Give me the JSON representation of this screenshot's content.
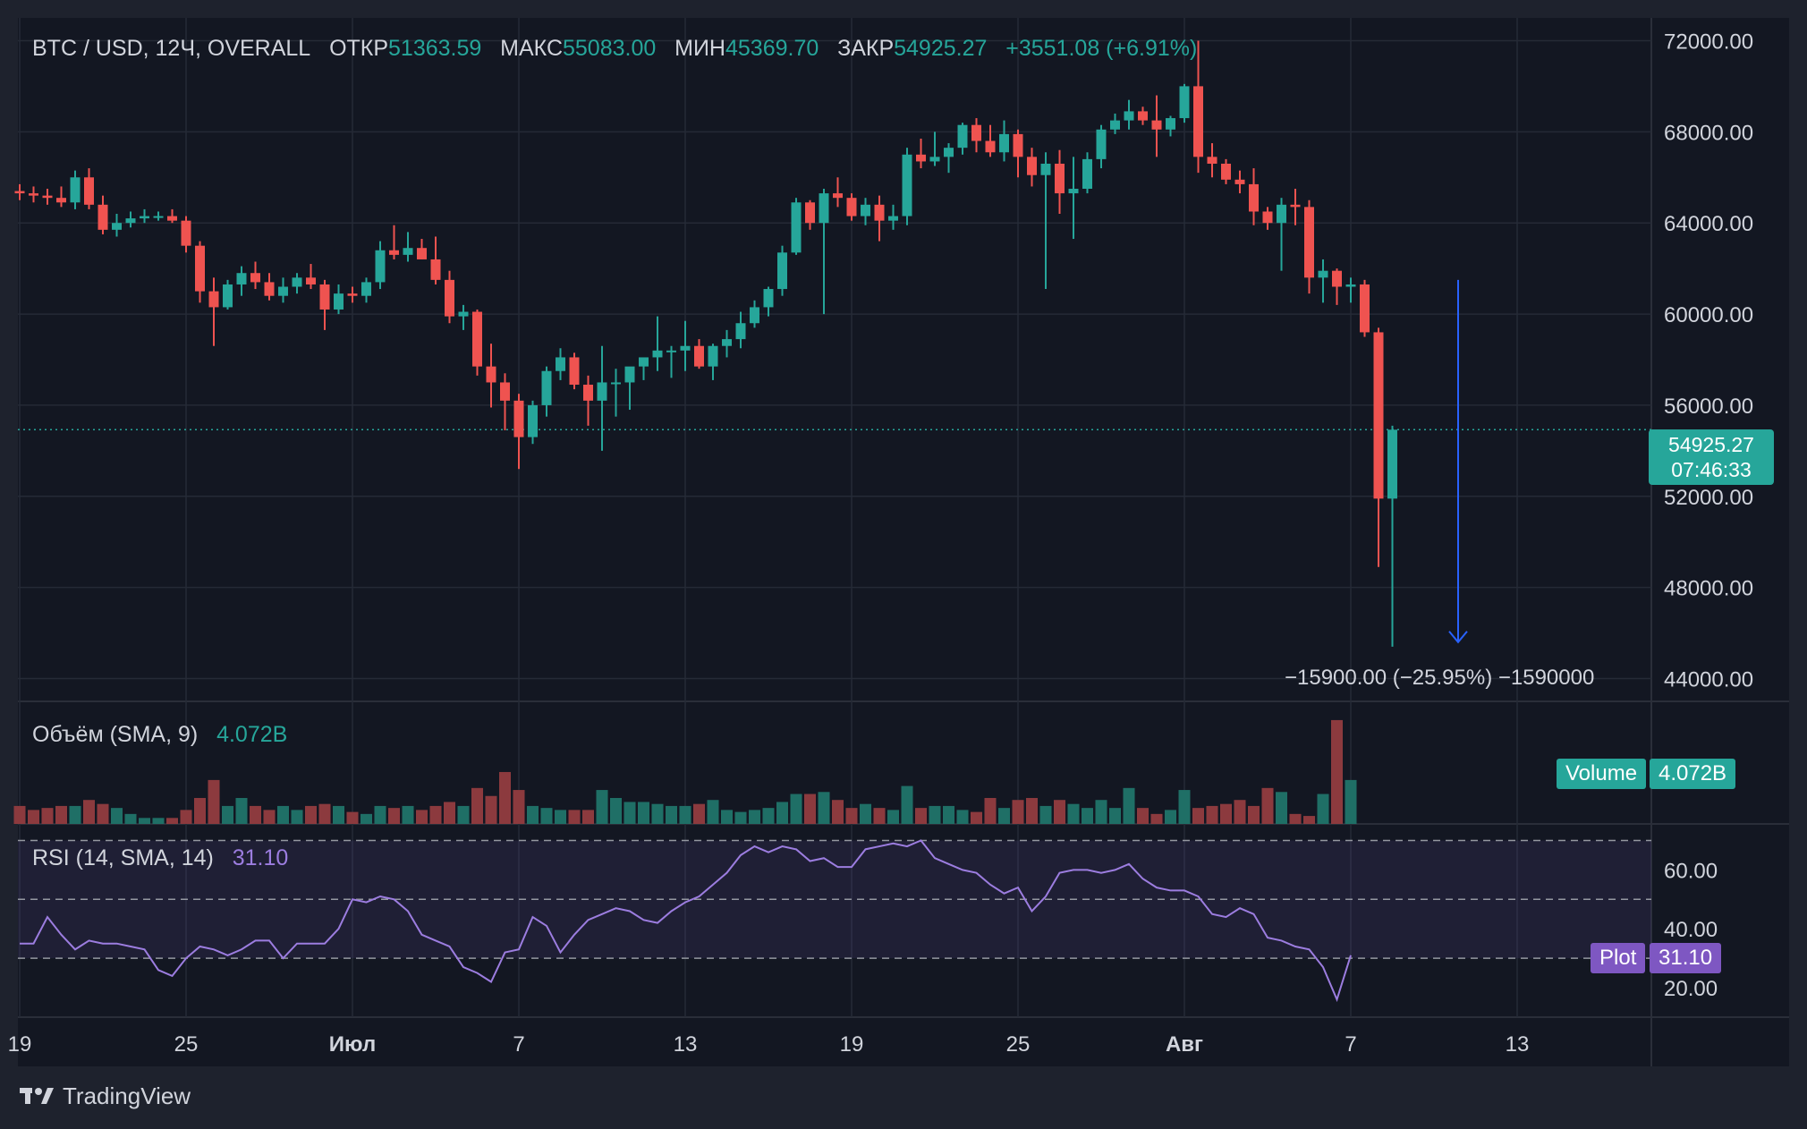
{
  "header": {
    "symbol_title": "BTC / USD, 12Ч, OVERALL",
    "open_label": "ОТКР",
    "open_value": "51363.59",
    "high_label": "МАКС",
    "high_value": "55083.00",
    "low_label": "МИН",
    "low_value": "45369.70",
    "close_label": "ЗАКР",
    "close_value": "54925.27",
    "change": "+3551.08 (+6.91%)"
  },
  "price_badge": {
    "price": "54925.27",
    "countdown": "07:46:33"
  },
  "volume_legend": {
    "label": "Объём (SMA, 9)",
    "value": "4.072B"
  },
  "volume_badge": {
    "name": "Volume",
    "value": "4.072B"
  },
  "rsi_legend": {
    "label": "RSI (14, SMA, 14)",
    "value": "31.10"
  },
  "rsi_badge": {
    "name": "Plot",
    "value": "31.10"
  },
  "measure_label": "−15900.00 (−25.95%) −1590000",
  "brand": "TradingView",
  "colors": {
    "up": "#26a69a",
    "down": "#ef5350",
    "rsi": "#9c7de0",
    "arrow": "#2962ff",
    "background": "#131722"
  },
  "chart_data": {
    "type": "candlestick",
    "title": "BTC / USD, 12Ч, OVERALL",
    "price_axis": {
      "ticks": [
        "72000.00",
        "68000.00",
        "64000.00",
        "60000.00",
        "56000.00",
        "52000.00",
        "48000.00",
        "44000.00"
      ],
      "range": [
        43000,
        73000
      ]
    },
    "time_axis": {
      "ticks": [
        "19",
        "25",
        "Июл",
        "7",
        "13",
        "19",
        "25",
        "Авг",
        "7",
        "13"
      ]
    },
    "last_price": 54925.27,
    "candles": [
      [
        65400,
        65700,
        65000,
        65300
      ],
      [
        65300,
        65600,
        64900,
        65200
      ],
      [
        65200,
        65500,
        64800,
        65100
      ],
      [
        65100,
        65600,
        64700,
        64900
      ],
      [
        64900,
        66300,
        64600,
        66000
      ],
      [
        66000,
        66400,
        64600,
        64800
      ],
      [
        64800,
        65200,
        63500,
        63700
      ],
      [
        63700,
        64400,
        63400,
        64000
      ],
      [
        64000,
        64500,
        63800,
        64200
      ],
      [
        64200,
        64600,
        64000,
        64300
      ],
      [
        64300,
        64500,
        64100,
        64300
      ],
      [
        64300,
        64600,
        64000,
        64100
      ],
      [
        64100,
        64300,
        62700,
        63000
      ],
      [
        63000,
        63200,
        60500,
        61000
      ],
      [
        61000,
        61600,
        58600,
        60300
      ],
      [
        60300,
        61500,
        60200,
        61300
      ],
      [
        61300,
        62100,
        60800,
        61800
      ],
      [
        61800,
        62300,
        61100,
        61400
      ],
      [
        61400,
        61800,
        60600,
        60800
      ],
      [
        60800,
        61600,
        60500,
        61200
      ],
      [
        61200,
        61800,
        60900,
        61600
      ],
      [
        61600,
        62200,
        61100,
        61300
      ],
      [
        61300,
        61500,
        59300,
        60200
      ],
      [
        60200,
        61300,
        60000,
        60900
      ],
      [
        60900,
        61200,
        60500,
        60800
      ],
      [
        60800,
        61600,
        60500,
        61400
      ],
      [
        61400,
        63200,
        61100,
        62800
      ],
      [
        62800,
        63900,
        62400,
        62600
      ],
      [
        62600,
        63600,
        62300,
        62900
      ],
      [
        62900,
        63300,
        62400,
        62400
      ],
      [
        62400,
        63400,
        61300,
        61500
      ],
      [
        61500,
        61900,
        59600,
        59900
      ],
      [
        59900,
        60400,
        59300,
        60100
      ],
      [
        60100,
        60200,
        57300,
        57700
      ],
      [
        57700,
        58700,
        55900,
        57000
      ],
      [
        57000,
        57400,
        54900,
        56200
      ],
      [
        56200,
        56500,
        53200,
        54600
      ],
      [
        54600,
        56200,
        54300,
        56000
      ],
      [
        56000,
        57700,
        55500,
        57500
      ],
      [
        57500,
        58500,
        57100,
        58100
      ],
      [
        58100,
        58300,
        56700,
        56900
      ],
      [
        56900,
        57300,
        55100,
        56200
      ],
      [
        56200,
        58600,
        54000,
        57000
      ],
      [
        57000,
        57600,
        55500,
        57000
      ],
      [
        57000,
        57600,
        55800,
        57700
      ],
      [
        57700,
        58000,
        57100,
        58100
      ],
      [
        58100,
        59900,
        57500,
        58400
      ],
      [
        58400,
        58600,
        57200,
        58400
      ],
      [
        58400,
        59700,
        57500,
        58600
      ],
      [
        58600,
        58900,
        57600,
        57700
      ],
      [
        57700,
        58700,
        57100,
        58600
      ],
      [
        58600,
        59300,
        58100,
        58900
      ],
      [
        58900,
        60100,
        58500,
        59600
      ],
      [
        59600,
        60600,
        59400,
        60300
      ],
      [
        60300,
        61200,
        59900,
        61100
      ],
      [
        61100,
        63000,
        60800,
        62700
      ],
      [
        62700,
        65100,
        62600,
        64900
      ],
      [
        64900,
        65000,
        63700,
        64000
      ],
      [
        64000,
        65500,
        60000,
        65300
      ],
      [
        65300,
        66000,
        64700,
        65100
      ],
      [
        65100,
        65300,
        64100,
        64300
      ],
      [
        64300,
        65100,
        63900,
        64800
      ],
      [
        64800,
        65200,
        63200,
        64100
      ],
      [
        64100,
        64800,
        63700,
        64300
      ],
      [
        64300,
        67300,
        63900,
        67000
      ],
      [
        67000,
        67700,
        66400,
        66700
      ],
      [
        66700,
        68000,
        66500,
        66900
      ],
      [
        66900,
        67500,
        66200,
        67300
      ],
      [
        67300,
        68400,
        67000,
        68300
      ],
      [
        68300,
        68600,
        67100,
        67600
      ],
      [
        67600,
        68300,
        66900,
        67100
      ],
      [
        67100,
        68500,
        66700,
        67900
      ],
      [
        67900,
        68100,
        66000,
        66900
      ],
      [
        66900,
        67300,
        65600,
        66100
      ],
      [
        66100,
        67100,
        61100,
        66600
      ],
      [
        66600,
        67200,
        64400,
        65300
      ],
      [
        65300,
        66900,
        63300,
        65500
      ],
      [
        65500,
        67100,
        65300,
        66800
      ],
      [
        66800,
        68300,
        66400,
        68100
      ],
      [
        68100,
        68800,
        67900,
        68500
      ],
      [
        68500,
        69400,
        68100,
        68900
      ],
      [
        68900,
        69100,
        68300,
        68500
      ],
      [
        68500,
        69600,
        66900,
        68100
      ],
      [
        68100,
        68700,
        67800,
        68600
      ],
      [
        68600,
        70100,
        68400,
        70000
      ],
      [
        70000,
        72000,
        66200,
        66900
      ],
      [
        66900,
        67500,
        66000,
        66600
      ],
      [
        66600,
        66800,
        65700,
        65900
      ],
      [
        65900,
        66300,
        65300,
        65700
      ],
      [
        65700,
        66400,
        63900,
        64500
      ],
      [
        64500,
        64700,
        63700,
        64000
      ],
      [
        64000,
        65100,
        61900,
        64800
      ],
      [
        64800,
        65500,
        63900,
        64700
      ],
      [
        64700,
        65000,
        60900,
        61600
      ],
      [
        61600,
        62400,
        60500,
        61900
      ],
      [
        61900,
        62000,
        60400,
        61200
      ],
      [
        61200,
        61600,
        60500,
        61300
      ],
      [
        61300,
        61500,
        59000,
        59200
      ],
      [
        59200,
        59400,
        48900,
        51900
      ],
      [
        51900,
        55100,
        45400,
        54925
      ]
    ],
    "volume": {
      "label": "Объём (SMA, 9)",
      "last": "4.072B",
      "values": [
        0.9,
        0.7,
        0.8,
        0.9,
        0.9,
        1.2,
        1.0,
        0.8,
        0.5,
        0.3,
        0.3,
        0.3,
        0.7,
        1.3,
        2.2,
        0.9,
        1.3,
        0.9,
        0.7,
        0.9,
        0.7,
        0.9,
        1.0,
        0.9,
        0.6,
        0.5,
        0.9,
        0.8,
        0.9,
        0.7,
        0.9,
        1.1,
        0.9,
        1.8,
        1.4,
        2.6,
        1.7,
        0.9,
        0.8,
        0.7,
        0.7,
        0.7,
        1.7,
        1.3,
        1.1,
        1.1,
        1.0,
        0.9,
        0.9,
        1.0,
        1.2,
        0.7,
        0.6,
        0.7,
        0.8,
        1.1,
        1.5,
        1.5,
        1.6,
        1.2,
        0.8,
        1.0,
        0.8,
        0.7,
        1.9,
        0.8,
        0.9,
        0.9,
        0.7,
        0.6,
        1.3,
        0.8,
        1.2,
        1.3,
        0.9,
        1.2,
        1.0,
        0.8,
        1.2,
        0.8,
        1.8,
        0.8,
        0.5,
        0.7,
        1.7,
        0.8,
        0.9,
        1.0,
        1.2,
        0.9,
        1.8,
        1.6,
        0.5,
        0.4,
        1.5,
        5.2,
        2.2
      ]
    },
    "rsi": {
      "label": "RSI (14, SMA, 14)",
      "last": 31.1,
      "axis_ticks": [
        "60.00",
        "40.00",
        "20.00"
      ],
      "range": [
        10,
        75
      ],
      "bands": [
        30,
        50,
        70
      ],
      "values": [
        35,
        35,
        44,
        38,
        33,
        36,
        35,
        35,
        34,
        33,
        26,
        24,
        30,
        34,
        33,
        31,
        33,
        36,
        36,
        30,
        35,
        35,
        35,
        40,
        50,
        49,
        51,
        50,
        46,
        38,
        36,
        34,
        27,
        25,
        22,
        32,
        33,
        44,
        41,
        32,
        38,
        43,
        45,
        47,
        46,
        43,
        42,
        46,
        49,
        51,
        55,
        59,
        65,
        68,
        66,
        68,
        67,
        63,
        64,
        61,
        61,
        67,
        68,
        69,
        68,
        70,
        64,
        62,
        60,
        59,
        55,
        52,
        54,
        46,
        51,
        59,
        60,
        60,
        59,
        60,
        62,
        57,
        54,
        53,
        53,
        51,
        45,
        44,
        47,
        45,
        37,
        36,
        34,
        33,
        27,
        16,
        31
      ]
    }
  }
}
